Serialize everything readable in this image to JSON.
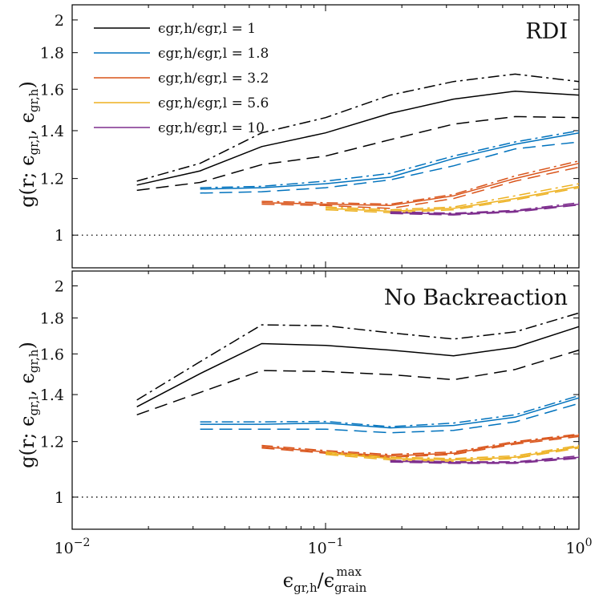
{
  "chart_data": {
    "type": "line",
    "xlabel": "ϵgr,h/ϵgrainmax",
    "ylabel": "g(r; ϵgr,l, ϵgr,h)",
    "x_scale": "log",
    "y_scale": "log",
    "xlim": [
      0.01,
      1.0
    ],
    "ylim": [
      0.9,
      2.1
    ],
    "x_ticks": [
      "10−2",
      "10−1",
      "100"
    ],
    "y_ticks": [
      "1",
      "1.2",
      "1.4",
      "1.6",
      "1.8",
      "2"
    ],
    "y_tick_values": [
      1,
      1.2,
      1.4,
      1.6,
      1.8,
      2
    ],
    "reference_line": {
      "y": 1,
      "style": "dotted"
    },
    "legend": {
      "placement": "top-left",
      "entries": [
        {
          "label": "ϵgr,h/ϵgr,l = 1",
          "color": "#000000"
        },
        {
          "label": "ϵgr,h/ϵgr,l = 1.8",
          "color": "#0072BD"
        },
        {
          "label": "ϵgr,h/ϵgr,l = 3.2",
          "color": "#D95319"
        },
        {
          "label": "ϵgr,h/ϵgr,l = 5.6",
          "color": "#EDB120"
        },
        {
          "label": "ϵgr,h/ϵgr,l = 10",
          "color": "#7E2F8E"
        }
      ]
    },
    "panels": [
      {
        "title": "RDI",
        "series": [
          {
            "ratio": "1",
            "color": "#000000",
            "x": [
              0.018,
              0.032,
              0.056,
              0.1,
              0.18,
              0.32,
              0.56,
              1.0
            ],
            "solid": [
              1.175,
              1.23,
              1.33,
              1.39,
              1.48,
              1.55,
              1.59,
              1.57
            ],
            "dashdot": [
              1.19,
              1.26,
              1.39,
              1.46,
              1.57,
              1.64,
              1.68,
              1.64
            ],
            "dashed": [
              1.155,
              1.185,
              1.255,
              1.29,
              1.36,
              1.43,
              1.465,
              1.46
            ]
          },
          {
            "ratio": "1.8",
            "color": "#0072BD",
            "x": [
              0.032,
              0.056,
              0.1,
              0.18,
              0.32,
              0.56,
              1.0
            ],
            "solid": [
              1.16,
              1.165,
              1.18,
              1.205,
              1.28,
              1.34,
              1.39
            ],
            "dashdot": [
              1.165,
              1.17,
              1.19,
              1.22,
              1.29,
              1.35,
              1.4
            ],
            "dashed": [
              1.145,
              1.15,
              1.165,
              1.195,
              1.25,
              1.32,
              1.35
            ]
          },
          {
            "ratio": "3.2",
            "color": "#D95319",
            "x": [
              0.056,
              0.1,
              0.18,
              0.32,
              0.56,
              1.0
            ],
            "solid": [
              1.11,
              1.105,
              1.1,
              1.135,
              1.2,
              1.26
            ],
            "dashdot": [
              1.115,
              1.11,
              1.105,
              1.14,
              1.21,
              1.27
            ],
            "dashed": [
              1.105,
              1.1,
              1.09,
              1.125,
              1.19,
              1.245
            ]
          },
          {
            "ratio": "5.6",
            "color": "#EDB120",
            "x": [
              0.1,
              0.18,
              0.32,
              0.56,
              1.0
            ],
            "solid": [
              1.09,
              1.08,
              1.09,
              1.125,
              1.17
            ],
            "dashdot": [
              1.095,
              1.085,
              1.095,
              1.135,
              1.18
            ],
            "dashed": [
              1.085,
              1.075,
              1.085,
              1.12,
              1.165
            ]
          },
          {
            "ratio": "10",
            "color": "#7E2F8E",
            "x": [
              0.18,
              0.32,
              0.56,
              1.0
            ],
            "solid": [
              1.075,
              1.07,
              1.08,
              1.105
            ],
            "dashdot": [
              1.078,
              1.073,
              1.083,
              1.11
            ],
            "dashed": [
              1.072,
              1.067,
              1.077,
              1.102
            ]
          }
        ]
      },
      {
        "title": "No Backreaction",
        "series": [
          {
            "ratio": "1",
            "color": "#000000",
            "x": [
              0.018,
              0.032,
              0.056,
              0.1,
              0.18,
              0.32,
              0.56,
              1.0
            ],
            "solid": [
              1.345,
              1.5,
              1.655,
              1.645,
              1.62,
              1.59,
              1.635,
              1.75
            ],
            "dashdot": [
              1.375,
              1.56,
              1.76,
              1.755,
              1.715,
              1.68,
              1.72,
              1.83
            ],
            "dashed": [
              1.31,
              1.41,
              1.515,
              1.51,
              1.495,
              1.47,
              1.52,
              1.62
            ]
          },
          {
            "ratio": "1.8",
            "color": "#0072BD",
            "x": [
              0.032,
              0.056,
              0.1,
              0.18,
              0.32,
              0.56,
              1.0
            ],
            "solid": [
              1.27,
              1.27,
              1.275,
              1.255,
              1.265,
              1.3,
              1.385
            ],
            "dashdot": [
              1.28,
              1.28,
              1.282,
              1.26,
              1.275,
              1.31,
              1.395
            ],
            "dashed": [
              1.25,
              1.25,
              1.25,
              1.235,
              1.245,
              1.28,
              1.36
            ]
          },
          {
            "ratio": "3.2",
            "color": "#D95319",
            "x": [
              0.056,
              0.1,
              0.18,
              0.32,
              0.56,
              1.0
            ],
            "solid": [
              1.18,
              1.16,
              1.145,
              1.155,
              1.195,
              1.225
            ],
            "dashdot": [
              1.185,
              1.165,
              1.15,
              1.16,
              1.2,
              1.23
            ],
            "dashed": [
              1.175,
              1.155,
              1.14,
              1.15,
              1.19,
              1.22
            ]
          },
          {
            "ratio": "5.6",
            "color": "#EDB120",
            "x": [
              0.1,
              0.18,
              0.32,
              0.56,
              1.0
            ],
            "solid": [
              1.155,
              1.135,
              1.13,
              1.14,
              1.18
            ],
            "dashdot": [
              1.16,
              1.14,
              1.135,
              1.145,
              1.185
            ],
            "dashed": [
              1.15,
              1.13,
              1.125,
              1.135,
              1.175
            ]
          },
          {
            "ratio": "10",
            "color": "#7E2F8E",
            "x": [
              0.18,
              0.32,
              0.56,
              1.0
            ],
            "solid": [
              1.125,
              1.12,
              1.12,
              1.14
            ],
            "dashdot": [
              1.128,
              1.123,
              1.123,
              1.145
            ],
            "dashed": [
              1.122,
              1.117,
              1.117,
              1.136
            ]
          }
        ]
      }
    ]
  }
}
